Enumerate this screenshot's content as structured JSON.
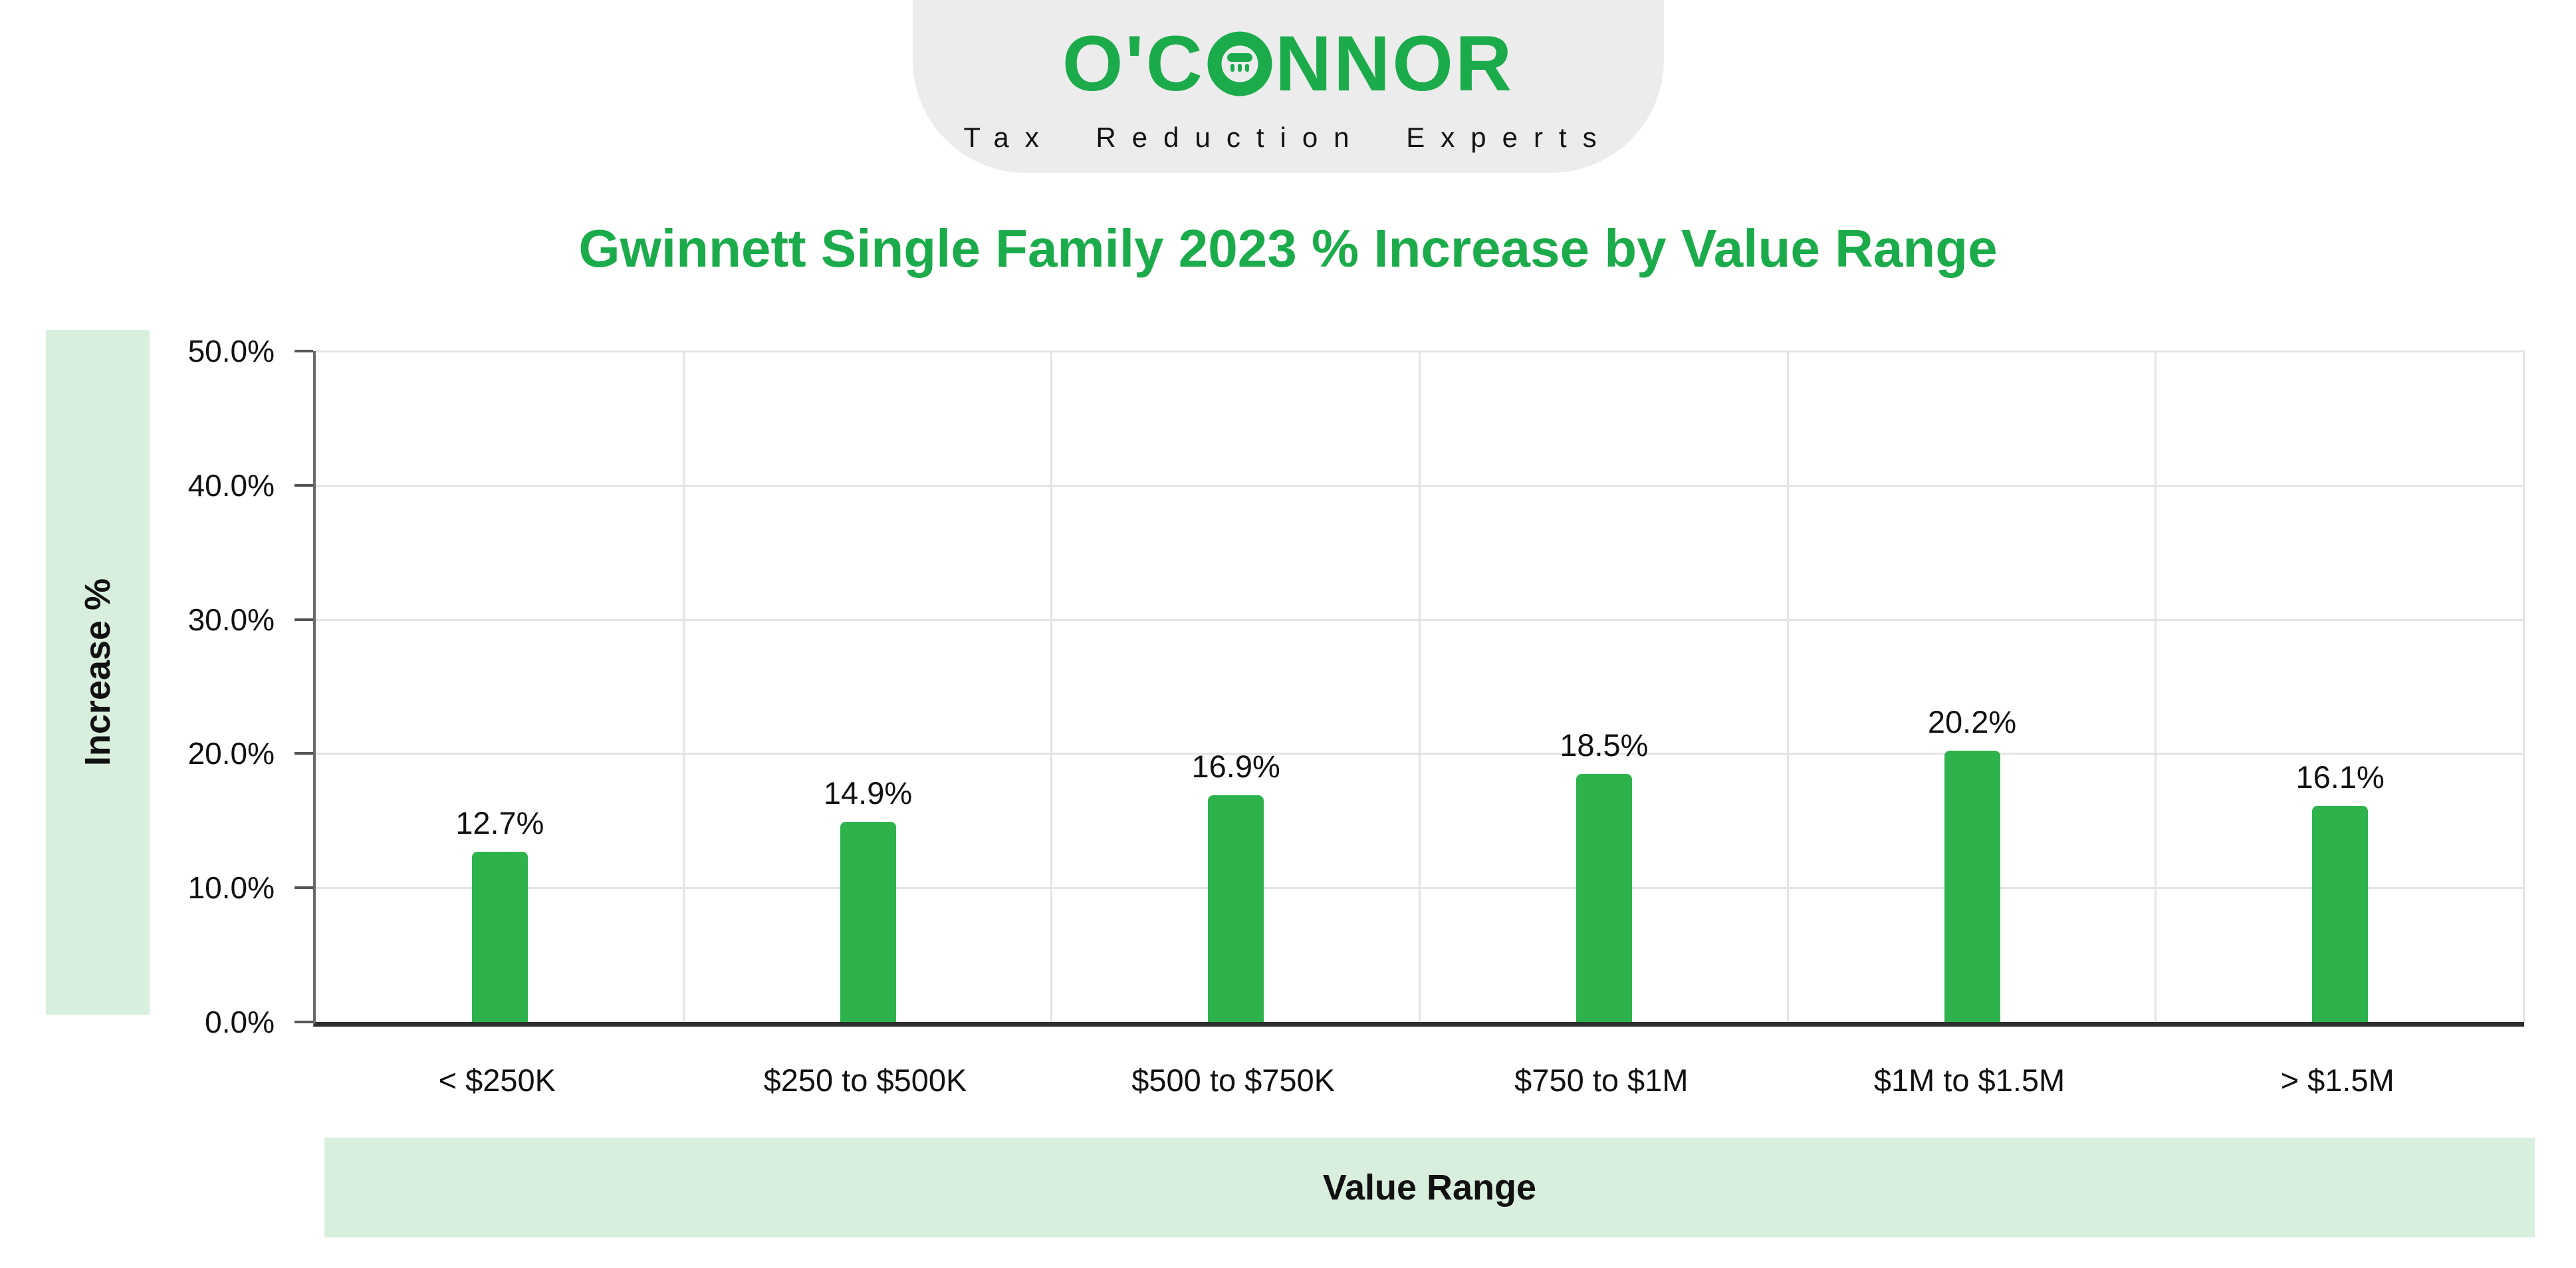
{
  "brand": {
    "logo_left": "O'C",
    "logo_right": "NNOR",
    "tagline": "Tax Reduction Experts"
  },
  "title": "Gwinnett Single Family 2023 % Increase by Value Range",
  "colors": {
    "green": "#1cab4b",
    "bar": "#2eb34c",
    "band": "#d8efdd",
    "logo_bg": "#ececec",
    "grid": "#e4e4e4"
  },
  "chart_data": {
    "type": "bar",
    "title": "Gwinnett Single Family 2023 % Increase by Value Range",
    "categories": [
      "< $250K",
      "$250 to $500K",
      "$500 to $750K",
      "$750 to $1M",
      "$1M to $1.5M",
      "> $1.5M"
    ],
    "values": [
      12.7,
      14.9,
      16.9,
      18.5,
      20.2,
      16.1
    ],
    "value_labels": [
      "12.7%",
      "14.9%",
      "16.9%",
      "18.5%",
      "20.2%",
      "16.1%"
    ],
    "xlabel": "Value Range",
    "ylabel": "Increase %",
    "ylim": [
      0,
      50
    ],
    "ytick_values": [
      0,
      10,
      20,
      30,
      40,
      50
    ],
    "ytick_labels": [
      "0.0%",
      "10.0%",
      "20.0%",
      "30.0%",
      "40.0%",
      "50.0%"
    ],
    "grid": true,
    "legend": "none",
    "bar_color": "#2eb34c"
  }
}
